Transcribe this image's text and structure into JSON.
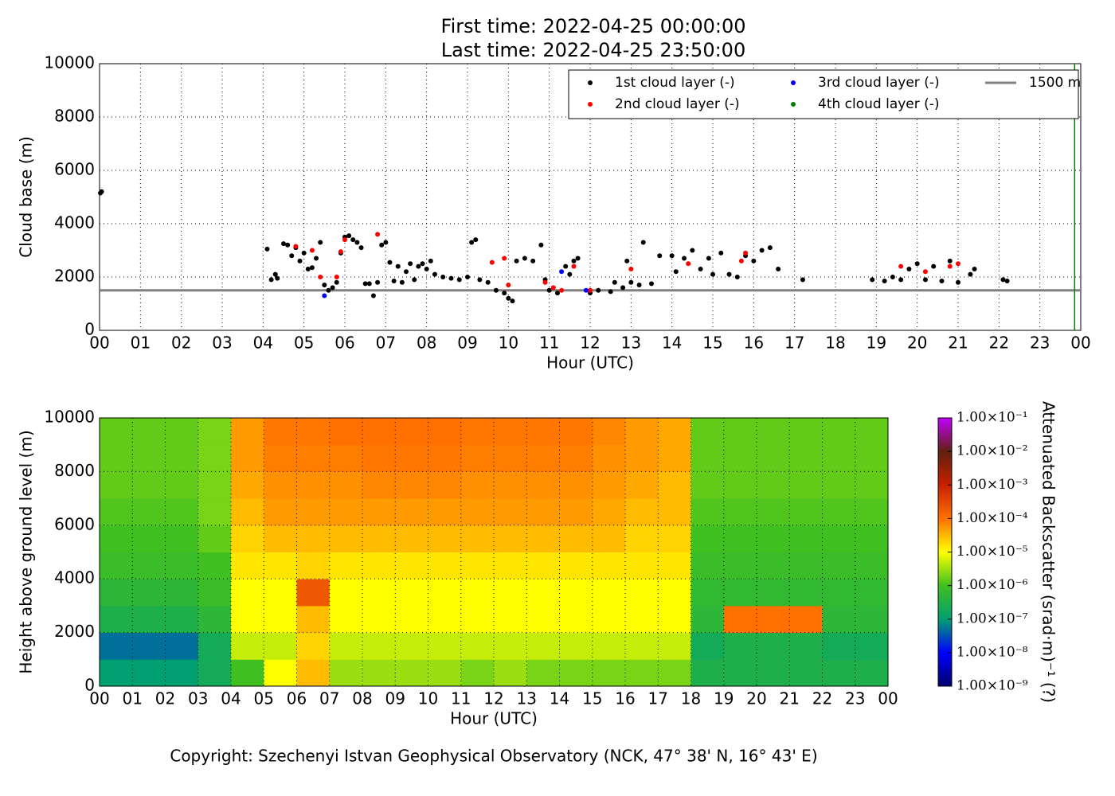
{
  "chart_data": [
    {
      "type": "scatter",
      "title": "First time: 2022-04-25 00:00:00",
      "subtitle": "Last time: 2022-04-25 23:50:00",
      "xlabel": "Hour (UTC)",
      "ylabel": "Cloud base (m)",
      "xlim": [
        0,
        24
      ],
      "ylim": [
        0,
        10000
      ],
      "xticks": [
        {
          "value": 0,
          "label": "00"
        },
        {
          "value": 1,
          "label": "01"
        },
        {
          "value": 2,
          "label": "02"
        },
        {
          "value": 3,
          "label": "03"
        },
        {
          "value": 4,
          "label": "04"
        },
        {
          "value": 5,
          "label": "05"
        },
        {
          "value": 6,
          "label": "06"
        },
        {
          "value": 7,
          "label": "07"
        },
        {
          "value": 8,
          "label": "08"
        },
        {
          "value": 9,
          "label": "09"
        },
        {
          "value": 10,
          "label": "10"
        },
        {
          "value": 11,
          "label": "11"
        },
        {
          "value": 12,
          "label": "12"
        },
        {
          "value": 13,
          "label": "13"
        },
        {
          "value": 14,
          "label": "14"
        },
        {
          "value": 15,
          "label": "15"
        },
        {
          "value": 16,
          "label": "16"
        },
        {
          "value": 17,
          "label": "17"
        },
        {
          "value": 18,
          "label": "18"
        },
        {
          "value": 19,
          "label": "19"
        },
        {
          "value": 20,
          "label": "20"
        },
        {
          "value": 21,
          "label": "21"
        },
        {
          "value": 22,
          "label": "22"
        },
        {
          "value": 23,
          "label": "23"
        },
        {
          "value": 24,
          "label": "00"
        }
      ],
      "yticks": [
        0,
        2000,
        4000,
        6000,
        8000,
        10000
      ],
      "grid": true,
      "legend": "upper right",
      "series": [
        {
          "name": "1st cloud layer (-)",
          "color": "#000000",
          "x": [
            0.02,
            0.05,
            4.1,
            4.2,
            4.3,
            4.35,
            4.5,
            4.6,
            4.7,
            4.8,
            4.9,
            5.0,
            5.1,
            5.2,
            5.3,
            5.4,
            5.5,
            5.6,
            5.7,
            5.8,
            5.9,
            6.0,
            6.1,
            6.2,
            6.3,
            6.4,
            6.5,
            6.6,
            6.7,
            6.8,
            6.9,
            7.0,
            7.1,
            7.2,
            7.3,
            7.4,
            7.5,
            7.6,
            7.7,
            7.8,
            7.9,
            8.0,
            8.1,
            8.2,
            8.4,
            8.6,
            8.8,
            9.0,
            9.1,
            9.2,
            9.3,
            9.5,
            9.7,
            9.9,
            10.0,
            10.1,
            10.2,
            10.4,
            10.6,
            10.8,
            10.9,
            11.0,
            11.2,
            11.4,
            11.5,
            11.6,
            11.7,
            12.0,
            12.2,
            12.5,
            12.6,
            12.8,
            12.9,
            13.0,
            13.2,
            13.3,
            13.5,
            13.7,
            14.0,
            14.1,
            14.3,
            14.5,
            14.7,
            14.9,
            15.0,
            15.2,
            15.4,
            15.6,
            15.8,
            16.0,
            16.2,
            16.4,
            16.6,
            17.2,
            18.9,
            19.2,
            19.4,
            19.6,
            19.8,
            20.0,
            20.2,
            20.4,
            20.6,
            20.8,
            21.0,
            21.3,
            21.4,
            22.1,
            22.2
          ],
          "values": [
            5150,
            5200,
            3050,
            1900,
            2100,
            1950,
            3250,
            3200,
            2800,
            3100,
            2600,
            2900,
            2300,
            2350,
            2700,
            3300,
            1700,
            1500,
            1600,
            1800,
            2900,
            3500,
            3550,
            3400,
            3300,
            3100,
            1750,
            1750,
            1300,
            1800,
            3200,
            3300,
            2550,
            1850,
            2400,
            1800,
            2200,
            2500,
            1900,
            2400,
            2500,
            2300,
            2600,
            2100,
            2000,
            1950,
            1900,
            2000,
            3300,
            3400,
            1900,
            1800,
            1500,
            1400,
            1200,
            1100,
            2600,
            2700,
            2600,
            3200,
            1900,
            1500,
            1400,
            2400,
            2100,
            2600,
            2700,
            1400,
            1500,
            1450,
            1800,
            1600,
            2600,
            1800,
            1700,
            3300,
            1750,
            2800,
            2800,
            2200,
            2700,
            3000,
            2300,
            2700,
            2100,
            2900,
            2100,
            2000,
            2800,
            2600,
            3000,
            3100,
            2300,
            1900,
            1900,
            1850,
            2000,
            1900,
            2300,
            2500,
            1900,
            2400,
            1850,
            2600,
            1800,
            2100,
            2300,
            1900,
            1850
          ]
        },
        {
          "name": "2nd cloud layer (-)",
          "color": "#ff0000",
          "x": [
            4.8,
            5.2,
            5.4,
            5.8,
            5.9,
            6.0,
            6.8,
            9.6,
            9.9,
            10.0,
            10.9,
            11.1,
            11.3,
            11.6,
            12.0,
            13.0,
            14.4,
            15.7,
            15.8,
            19.6,
            20.2,
            20.8,
            21.0
          ],
          "values": [
            3150,
            3000,
            2000,
            2000,
            2950,
            3400,
            3600,
            2550,
            2700,
            1700,
            1800,
            1600,
            1500,
            2400,
            1500,
            2300,
            2500,
            2600,
            2900,
            2400,
            2200,
            2400,
            2500
          ]
        },
        {
          "name": "3rd cloud layer (-)",
          "color": "#0000ff",
          "x": [
            5.5,
            11.3,
            11.9
          ],
          "values": [
            1300,
            2200,
            1500
          ]
        },
        {
          "name": "4th cloud layer (-)",
          "color": "#008000",
          "x": [],
          "values": []
        }
      ],
      "hlines": [
        {
          "name": "1500 m",
          "value": 1500,
          "color": "#808080"
        }
      ],
      "vlines": [
        {
          "value": 23.85,
          "color": "#008000"
        }
      ]
    },
    {
      "type": "heatmap",
      "xlabel": "Hour (UTC)",
      "ylabel": "Height above ground level (m)",
      "xlim": [
        0,
        24
      ],
      "ylim": [
        0,
        10000
      ],
      "xticks": [
        {
          "value": 0,
          "label": "00"
        },
        {
          "value": 1,
          "label": "01"
        },
        {
          "value": 2,
          "label": "02"
        },
        {
          "value": 3,
          "label": "03"
        },
        {
          "value": 4,
          "label": "04"
        },
        {
          "value": 5,
          "label": "05"
        },
        {
          "value": 6,
          "label": "06"
        },
        {
          "value": 7,
          "label": "07"
        },
        {
          "value": 8,
          "label": "08"
        },
        {
          "value": 9,
          "label": "09"
        },
        {
          "value": 10,
          "label": "10"
        },
        {
          "value": 11,
          "label": "11"
        },
        {
          "value": 12,
          "label": "12"
        },
        {
          "value": 13,
          "label": "13"
        },
        {
          "value": 14,
          "label": "14"
        },
        {
          "value": 15,
          "label": "15"
        },
        {
          "value": 16,
          "label": "16"
        },
        {
          "value": 17,
          "label": "17"
        },
        {
          "value": 18,
          "label": "18"
        },
        {
          "value": 19,
          "label": "19"
        },
        {
          "value": 20,
          "label": "20"
        },
        {
          "value": 21,
          "label": "21"
        },
        {
          "value": 22,
          "label": "22"
        },
        {
          "value": 23,
          "label": "23"
        },
        {
          "value": 24,
          "label": "00"
        }
      ],
      "yticks": [
        0,
        2000,
        4000,
        6000,
        8000,
        10000
      ],
      "grid": true,
      "xbins": [
        0,
        1,
        2,
        3,
        4,
        5,
        6,
        7,
        8,
        9,
        10,
        11,
        12,
        13,
        14,
        15,
        16,
        17,
        18,
        19,
        20,
        21,
        22,
        23,
        24
      ],
      "ybins": [
        0,
        1000,
        2000,
        3000,
        4000,
        5000,
        6000,
        7000,
        8000,
        9000,
        10000
      ],
      "values": [
        [
          1e-07,
          1e-07,
          1e-07,
          2e-07,
          1e-06,
          1e-05,
          3e-05,
          3e-06,
          3e-06,
          3e-06,
          3e-06,
          2e-06,
          3e-06,
          2e-06,
          2e-06,
          2e-06,
          2e-06,
          2e-06,
          3e-07,
          3e-07,
          3e-07,
          3e-07,
          3e-07,
          3e-07
        ],
        [
          5e-08,
          5e-08,
          5e-08,
          2e-07,
          5e-06,
          5e-06,
          2e-05,
          5e-06,
          5e-06,
          5e-06,
          5e-06,
          5e-06,
          5e-06,
          5e-06,
          5e-06,
          5e-06,
          5e-06,
          5e-06,
          2e-07,
          3e-07,
          3e-07,
          3e-07,
          2e-07,
          2e-07
        ],
        [
          3e-07,
          3e-07,
          3e-07,
          5e-07,
          1e-05,
          1e-05,
          3e-05,
          1e-05,
          1e-05,
          1e-05,
          1e-05,
          1e-05,
          1e-05,
          1e-05,
          1e-05,
          1e-05,
          1e-05,
          1e-05,
          5e-07,
          0.0001,
          0.0001,
          0.0001,
          5e-07,
          5e-07
        ],
        [
          5e-07,
          5e-07,
          5e-07,
          8e-07,
          1e-05,
          1e-05,
          0.0002,
          1e-05,
          1e-05,
          1e-05,
          1e-05,
          1e-05,
          1e-05,
          1e-05,
          1e-05,
          1e-05,
          1e-05,
          1e-05,
          6e-07,
          6e-07,
          6e-07,
          6e-07,
          6e-07,
          6e-07
        ],
        [
          8e-07,
          8e-07,
          8e-07,
          1e-06,
          1.5e-05,
          1.5e-05,
          2e-05,
          1.5e-05,
          1.5e-05,
          1.5e-05,
          1.5e-05,
          1.5e-05,
          1.5e-05,
          1.5e-05,
          1.5e-05,
          1.5e-05,
          1.5e-05,
          1.5e-05,
          8e-07,
          8e-07,
          8e-07,
          8e-07,
          8e-07,
          8e-07
        ],
        [
          1e-06,
          1e-06,
          1e-06,
          1.5e-06,
          2e-05,
          3e-05,
          3e-05,
          3e-05,
          3e-05,
          3e-05,
          3e-05,
          3e-05,
          3e-05,
          3e-05,
          3e-05,
          3e-05,
          2e-05,
          2e-05,
          1e-06,
          1e-06,
          1e-06,
          1e-06,
          1e-06,
          1e-06
        ],
        [
          1.2e-06,
          1.2e-06,
          1.2e-06,
          2e-06,
          3e-05,
          5e-05,
          5e-05,
          5e-05,
          5e-05,
          5e-05,
          5e-05,
          5e-05,
          5e-05,
          5e-05,
          5e-05,
          4e-05,
          3e-05,
          3e-05,
          1.2e-06,
          1.2e-06,
          1.2e-06,
          1.2e-06,
          1.2e-06,
          1.2e-06
        ],
        [
          1.5e-06,
          1.5e-06,
          1.5e-06,
          2e-06,
          4e-05,
          6e-05,
          6e-05,
          6e-05,
          7e-05,
          7e-05,
          7e-05,
          6e-05,
          6e-05,
          6e-05,
          6e-05,
          5e-05,
          4e-05,
          3e-05,
          1.5e-06,
          1.5e-06,
          1.5e-06,
          1.5e-06,
          1.5e-06,
          1.5e-06
        ],
        [
          1.5e-06,
          1.5e-06,
          1.5e-06,
          2e-06,
          5e-05,
          8e-05,
          8e-05,
          8e-05,
          9e-05,
          9e-05,
          9e-05,
          8e-05,
          8e-05,
          8e-05,
          8e-05,
          6e-05,
          5e-05,
          4e-05,
          1.5e-06,
          1.5e-06,
          1.5e-06,
          1.5e-06,
          1.5e-06,
          1.5e-06
        ],
        [
          1.5e-06,
          1.5e-06,
          1.5e-06,
          2e-06,
          5e-05,
          9e-05,
          9e-05,
          0.0001,
          0.0001,
          0.0001,
          0.0001,
          9e-05,
          9e-05,
          9e-05,
          9e-05,
          7e-05,
          5e-05,
          4e-05,
          1.5e-06,
          1.5e-06,
          1.5e-06,
          1.5e-06,
          1.5e-06,
          1.5e-06
        ]
      ],
      "log_color": true,
      "clim": [
        1e-09,
        0.1
      ],
      "colormap": [
        "#000070",
        "#0000ff",
        "#00a070",
        "#40c020",
        "#ffff00",
        "#ff7000",
        "#c82000",
        "#602010",
        "#c000ff"
      ],
      "colorbar_label": "Attenuated Backscatter (srad·m)⁻¹ (?)",
      "cticks": [
        {
          "value": 1e-09,
          "label": "1.00×10⁻⁹"
        },
        {
          "value": 1e-08,
          "label": "1.00×10⁻⁸"
        },
        {
          "value": 1e-07,
          "label": "1.00×10⁻⁷"
        },
        {
          "value": 1e-06,
          "label": "1.00×10⁻⁶"
        },
        {
          "value": 1e-05,
          "label": "1.00×10⁻⁵"
        },
        {
          "value": 0.0001,
          "label": "1.00×10⁻⁴"
        },
        {
          "value": 0.001,
          "label": "1.00×10⁻³"
        },
        {
          "value": 0.01,
          "label": "1.00×10⁻²"
        },
        {
          "value": 0.1,
          "label": "1.00×10⁻¹"
        }
      ]
    }
  ],
  "footer": "Copyright: Szechenyi Istvan Geophysical Observatory (NCK, 47° 38' N, 16° 43' E)"
}
